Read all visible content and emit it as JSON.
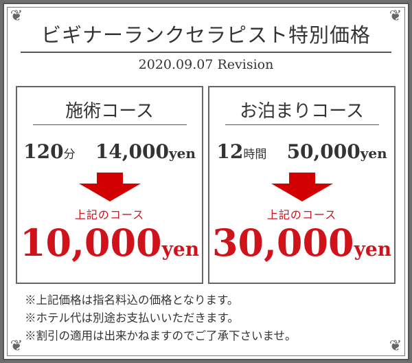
{
  "title": "ビギナーランクセラピスト特別価格",
  "revision": "2020.09.07 Revision",
  "courses": [
    {
      "name": "施術コース",
      "duration_num": "120",
      "duration_unit": "分",
      "original_price": "14,000",
      "original_unit": "yen",
      "label": "上記のコース",
      "special_price": "10,000",
      "special_unit": "yen"
    },
    {
      "name": "お泊まりコース",
      "duration_num": "12",
      "duration_unit": "時間",
      "original_price": "50,000",
      "original_unit": "yen",
      "label": "上記のコース",
      "special_price": "30,000",
      "special_unit": "yen"
    }
  ],
  "notes": [
    "※上記価格は指名料込の価格となります。",
    "※ホテル代は別途お支払いいただきます。",
    "※割引の適用は出来かねますのでご了承下さいませ。"
  ],
  "colors": {
    "accent": "#d0121b",
    "frame": "#666666",
    "text": "#333333"
  }
}
